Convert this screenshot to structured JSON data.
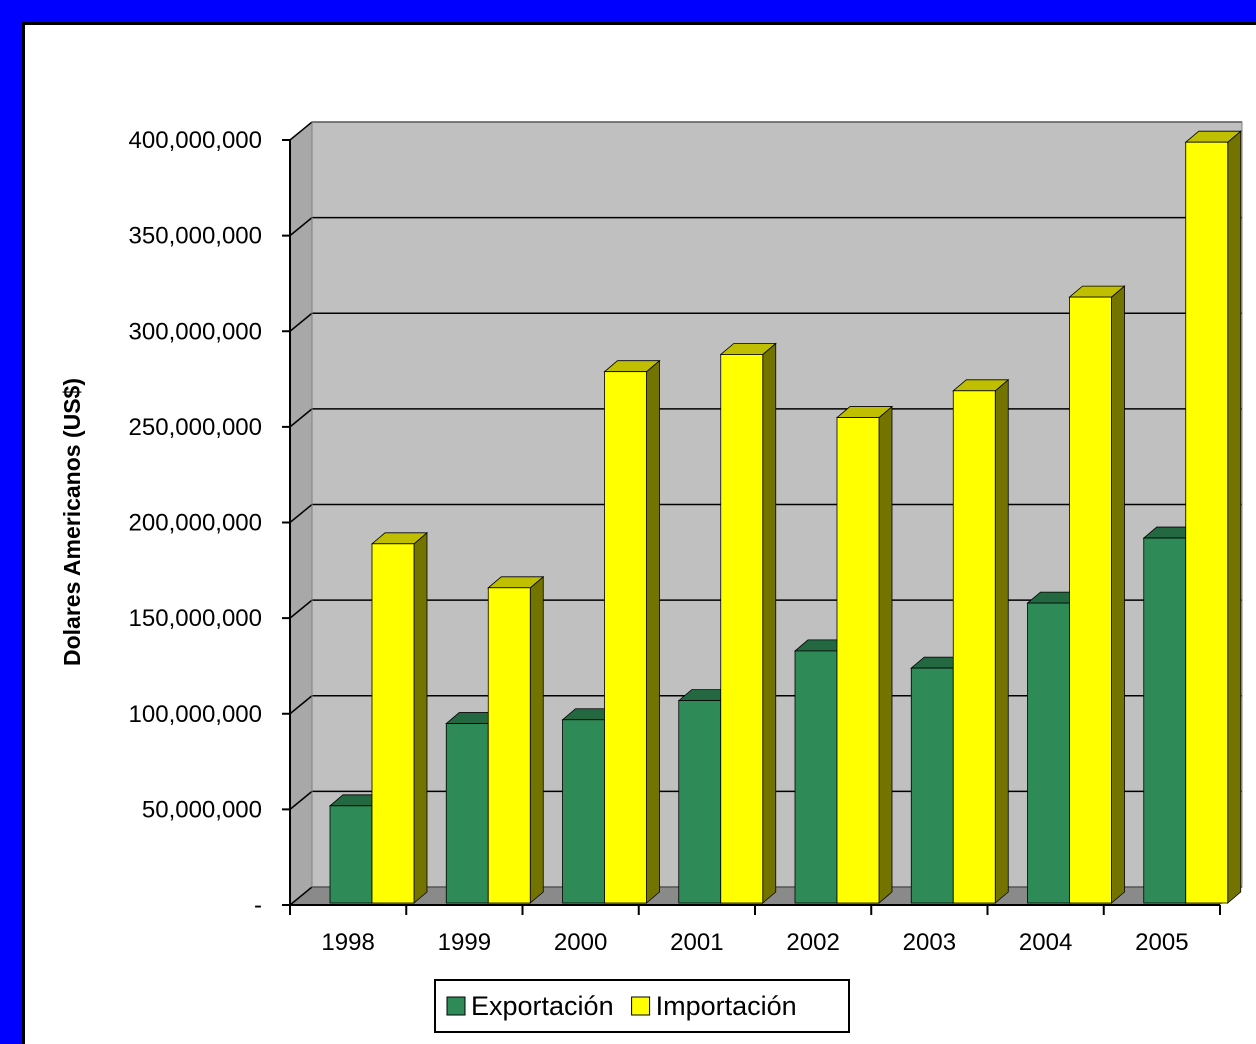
{
  "chart_data": {
    "type": "bar",
    "categories": [
      "1998",
      "1999",
      "2000",
      "2001",
      "2002",
      "2003",
      "2004",
      "2005"
    ],
    "series": [
      {
        "name": "Exportación",
        "values": [
          55000000,
          98000000,
          100000000,
          110000000,
          136000000,
          127000000,
          161000000,
          195000000
        ],
        "color": "#2e8b57"
      },
      {
        "name": "Importación",
        "values": [
          192000000,
          169000000,
          282000000,
          291000000,
          258000000,
          272000000,
          321000000,
          402000000
        ],
        "color": "#ffff00"
      }
    ],
    "xlabel": "",
    "ylabel": "Dolares Americanos (US$)",
    "ylim": [
      0,
      400000000
    ],
    "yticks": [
      0,
      50000000,
      100000000,
      150000000,
      200000000,
      250000000,
      300000000,
      350000000,
      400000000
    ],
    "ytick_labels": [
      "-",
      "50,000,000",
      "100,000,000",
      "150,000,000",
      "200,000,000",
      "250,000,000",
      "300,000,000",
      "350,000,000",
      "400,000,000"
    ],
    "grid": true,
    "legend_position": "bottom",
    "colors": {
      "frame": "#0000ff",
      "plot_background": "#c0c0c0",
      "floor": "#8a8a8a",
      "gridline": "#000000"
    }
  }
}
